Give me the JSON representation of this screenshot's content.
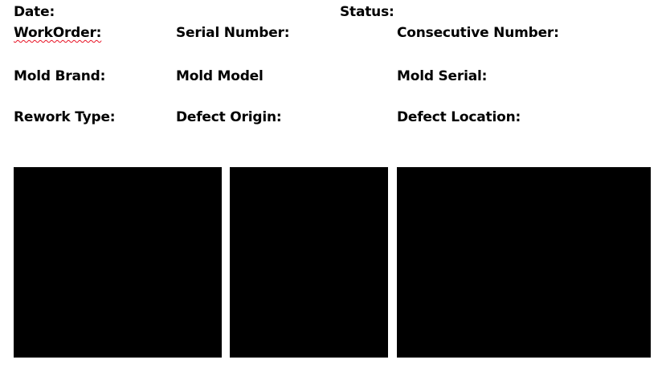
{
  "fields": {
    "date": "Date:",
    "status": "Status:",
    "work_order": "WorkOrder:",
    "serial_number": "Serial Number:",
    "consecutive_number": "Consecutive Number:",
    "mold_brand": "Mold Brand:",
    "mold_model": "Mold Model",
    "mold_serial": "Mold Serial:",
    "rework_type": "Rework Type:",
    "defect_origin": "Defect Origin:",
    "defect_location": "Defect Location:"
  },
  "colors": {
    "text": "#000000",
    "image_placeholder": "#000000",
    "spellcheck_underline": "#e81123"
  }
}
